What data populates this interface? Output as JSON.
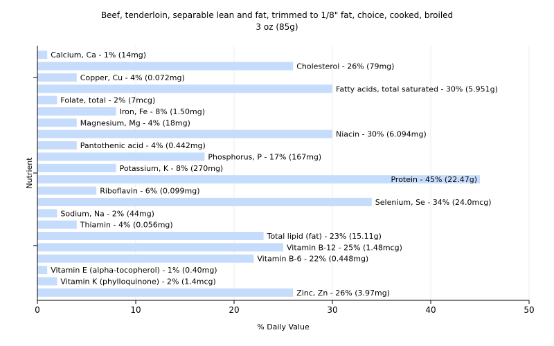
{
  "chart_data": {
    "type": "bar",
    "orientation": "horizontal",
    "title": "Beef, tenderloin, separable lean and fat, trimmed to 1/8\" fat, choice, cooked, broiled",
    "subtitle": "3 oz (85g)",
    "xlabel": "% Daily Value",
    "ylabel": "Nutrient",
    "xlim": [
      0,
      50
    ],
    "xticks": [
      0,
      10,
      20,
      30,
      40,
      50
    ],
    "grid": "vertical",
    "bar_color": "#c6dcfc",
    "categories": [
      "Calcium, Ca",
      "Cholesterol",
      "Copper, Cu",
      "Fatty acids, total saturated",
      "Folate, total",
      "Iron, Fe",
      "Magnesium, Mg",
      "Niacin",
      "Pantothenic acid",
      "Phosphorus, P",
      "Potassium, K",
      "Protein",
      "Riboflavin",
      "Selenium, Se",
      "Sodium, Na",
      "Thiamin",
      "Total lipid (fat)",
      "Vitamin B-12",
      "Vitamin B-6",
      "Vitamin E (alpha-tocopherol)",
      "Vitamin K (phylloquinone)",
      "Zinc, Zn"
    ],
    "values": [
      1,
      26,
      4,
      30,
      2,
      8,
      4,
      30,
      4,
      17,
      8,
      45,
      6,
      34,
      2,
      4,
      23,
      25,
      22,
      1,
      2,
      26
    ],
    "labels": [
      "Calcium, Ca - 1% (14mg)",
      "Cholesterol - 26% (79mg)",
      "Copper, Cu - 4% (0.072mg)",
      "Fatty acids, total saturated - 30% (5.951g)",
      "Folate, total - 2% (7mcg)",
      "Iron, Fe - 8% (1.50mg)",
      "Magnesium, Mg - 4% (18mg)",
      "Niacin - 30% (6.094mg)",
      "Pantothenic acid - 4% (0.442mg)",
      "Phosphorus, P - 17% (167mg)",
      "Potassium, K - 8% (270mg)",
      "Protein - 45% (22.47g)",
      "Riboflavin - 6% (0.099mg)",
      "Selenium, Se - 34% (24.0mcg)",
      "Sodium, Na - 2% (44mg)",
      "Thiamin - 4% (0.056mg)",
      "Total lipid (fat) - 23% (15.11g)",
      "Vitamin B-12 - 25% (1.48mcg)",
      "Vitamin B-6 - 22% (0.448mg)",
      "Vitamin E (alpha-tocopherol) - 1% (0.40mg)",
      "Vitamin K (phylloquinone) - 2% (1.4mcg)",
      "Zinc, Zn - 26% (3.97mg)"
    ],
    "inside_label_indices": [
      11
    ]
  }
}
